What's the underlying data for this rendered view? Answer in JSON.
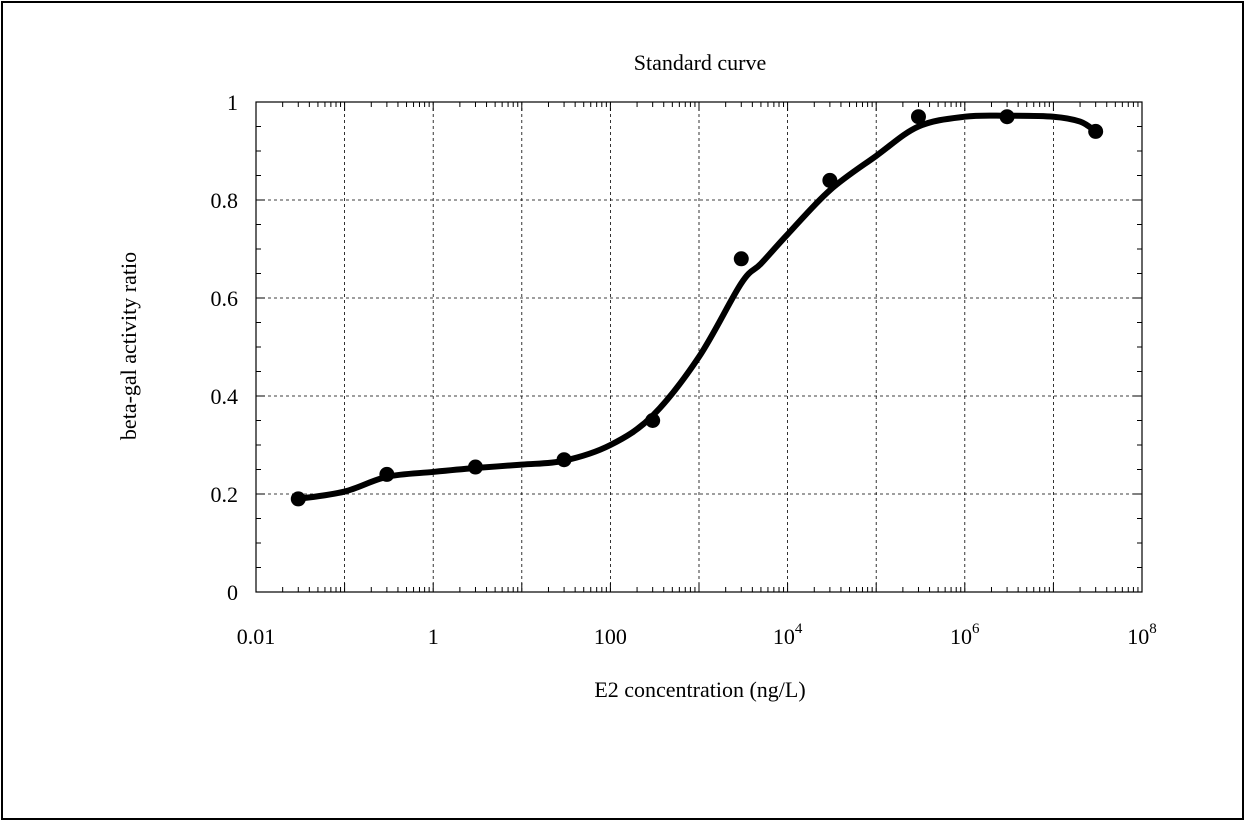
{
  "chart_data": {
    "type": "line",
    "title": "Standard curve",
    "xlabel": "E2 concentration (ng/L)",
    "ylabel": "beta-gal activity ratio",
    "x_scale": "log",
    "xlim": [
      0.01,
      100000000
    ],
    "ylim": [
      0,
      1
    ],
    "grid": true,
    "x_tick_labels": [
      {
        "value": 0.01,
        "base": "0.01",
        "exp": ""
      },
      {
        "value": 1,
        "base": "1",
        "exp": ""
      },
      {
        "value": 100,
        "base": "100",
        "exp": ""
      },
      {
        "value": 10000,
        "base": "10",
        "exp": "4"
      },
      {
        "value": 1000000,
        "base": "10",
        "exp": "6"
      },
      {
        "value": 100000000,
        "base": "10",
        "exp": "8"
      }
    ],
    "y_tick_labels": [
      {
        "value": 0,
        "label": "0"
      },
      {
        "value": 0.2,
        "label": "0.2"
      },
      {
        "value": 0.4,
        "label": "0.4"
      },
      {
        "value": 0.6,
        "label": "0.6"
      },
      {
        "value": 0.8,
        "label": "0.8"
      },
      {
        "value": 1,
        "label": "1"
      }
    ],
    "series": [
      {
        "kind": "points",
        "marker_color": "#000000",
        "x": [
          0.03,
          0.3,
          3,
          30,
          300,
          3000,
          30000,
          300000,
          3000000,
          30000000
        ],
        "y": [
          0.19,
          0.24,
          0.255,
          0.27,
          0.35,
          0.68,
          0.84,
          0.97,
          0.97,
          0.94
        ]
      },
      {
        "kind": "fitted-curve",
        "line_color": "#000000",
        "x": [
          0.03,
          0.1,
          0.3,
          1,
          3,
          10,
          30,
          100,
          300,
          1000,
          3000,
          5000,
          10000,
          30000,
          100000,
          300000,
          1000000,
          3000000,
          10000000,
          20000000,
          30000000
        ],
        "y": [
          0.19,
          0.205,
          0.235,
          0.245,
          0.253,
          0.26,
          0.268,
          0.3,
          0.36,
          0.48,
          0.63,
          0.67,
          0.73,
          0.82,
          0.89,
          0.95,
          0.97,
          0.972,
          0.97,
          0.96,
          0.94
        ]
      }
    ]
  }
}
